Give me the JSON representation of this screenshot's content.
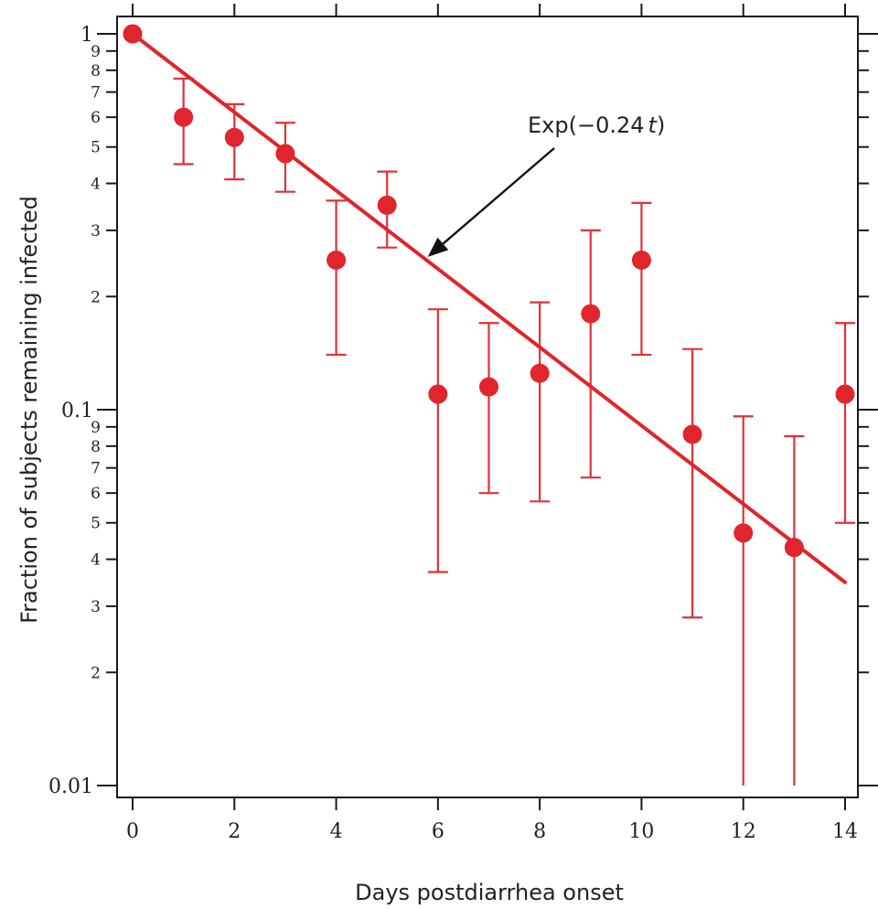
{
  "chart_data": {
    "type": "scatter",
    "xlabel": "Days postdiarrhea onset",
    "ylabel": "Fraction of subjects remaining infected",
    "xlim": [
      -0.3,
      14.3
    ],
    "ylim": [
      0.0095,
      1.08
    ],
    "y_scale": "log",
    "x_ticks": [
      0,
      2,
      4,
      6,
      8,
      10,
      12,
      14
    ],
    "y_major_ticks": [
      {
        "value": 1,
        "label": "1"
      },
      {
        "value": 0.1,
        "label": "0.1"
      },
      {
        "value": 0.01,
        "label": "0.01"
      }
    ],
    "y_minor_tick_labels": [
      "2",
      "3",
      "4",
      "5",
      "6",
      "7",
      "8",
      "9"
    ],
    "grid": false,
    "series": [
      {
        "color": "#e0252c",
        "points": [
          {
            "x": 0,
            "y": 1.0,
            "low": null,
            "high": null
          },
          {
            "x": 1,
            "y": 0.6,
            "low": 0.45,
            "high": 0.76
          },
          {
            "x": 2,
            "y": 0.53,
            "low": 0.41,
            "high": 0.65
          },
          {
            "x": 3,
            "y": 0.48,
            "low": 0.38,
            "high": 0.58
          },
          {
            "x": 4,
            "y": 0.25,
            "low": 0.14,
            "high": 0.36
          },
          {
            "x": 5,
            "y": 0.35,
            "low": 0.27,
            "high": 0.43
          },
          {
            "x": 6,
            "y": 0.11,
            "low": 0.037,
            "high": 0.185
          },
          {
            "x": 7,
            "y": 0.115,
            "low": 0.06,
            "high": 0.17
          },
          {
            "x": 8,
            "y": 0.125,
            "low": 0.057,
            "high": 0.193
          },
          {
            "x": 9,
            "y": 0.18,
            "low": 0.066,
            "high": 0.3
          },
          {
            "x": 10,
            "y": 0.25,
            "low": 0.14,
            "high": 0.355
          },
          {
            "x": 11,
            "y": 0.086,
            "low": 0.028,
            "high": 0.145
          },
          {
            "x": 12,
            "y": 0.047,
            "low": 0.01,
            "high": 0.096
          },
          {
            "x": 13,
            "y": 0.043,
            "low": 0.01,
            "high": 0.085
          },
          {
            "x": 14,
            "y": 0.11,
            "low": 0.05,
            "high": 0.17
          }
        ]
      }
    ],
    "fit": {
      "label": "Exp(−0.24 t)",
      "rate": 0.24,
      "x_start": 0,
      "x_end": 14
    },
    "annotation": {
      "text_prefix": "Exp(−0.24",
      "text_var": "t",
      "text_suffix": ")",
      "arrow_target": {
        "x": 5.8,
        "y": 0.255
      }
    }
  }
}
